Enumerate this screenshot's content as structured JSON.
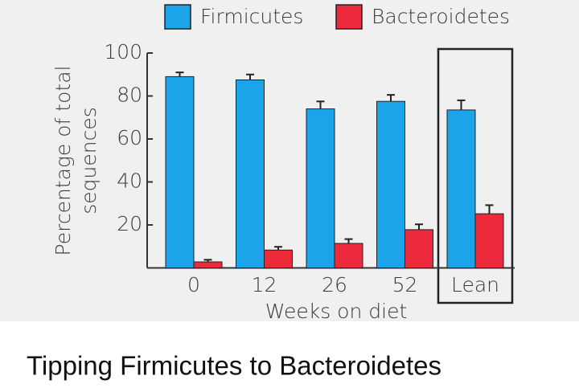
{
  "chart_data": {
    "type": "bar",
    "ylabel": [
      "Percentage of total",
      "sequences"
    ],
    "xlabel": "Weeks on diet",
    "categories": [
      "0",
      "12",
      "26",
      "52",
      "Lean"
    ],
    "series": [
      {
        "name": "Firmicutes",
        "color": "#1ba4ea",
        "values": [
          89,
          87.5,
          74,
          77.5,
          73.5
        ],
        "errors": [
          2,
          2.5,
          3.5,
          3,
          4.5
        ]
      },
      {
        "name": "Bacteroidetes",
        "color": "#ec2a3c",
        "values": [
          2.8,
          8.3,
          11.4,
          17.8,
          25.2
        ],
        "errors": [
          1,
          1.5,
          2,
          2.5,
          4
        ]
      }
    ],
    "ylim": [
      0,
      100
    ],
    "yticks": [
      20,
      40,
      60,
      80,
      100
    ]
  },
  "caption": "Tipping Firmicutes to Bacteroidetes"
}
